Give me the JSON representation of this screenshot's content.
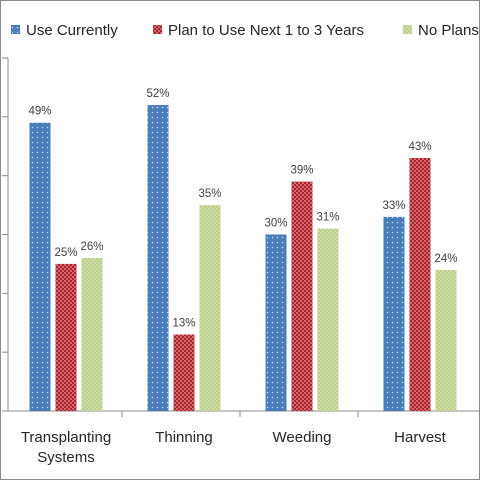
{
  "chart_data": {
    "type": "bar",
    "categories": [
      "Transplanting Systems",
      "Thinning",
      "Weeding",
      "Harvest"
    ],
    "category_lines": [
      [
        "Transplanting",
        "Systems"
      ],
      [
        "Thinning"
      ],
      [
        "Weeding"
      ],
      [
        "Harvest"
      ]
    ],
    "series": [
      {
        "name": "Use Currently",
        "values": [
          49,
          52,
          30,
          33
        ],
        "color": "#4a7ebb",
        "pattern": "dots"
      },
      {
        "name": "Plan to Use Next 1 to 3 Years",
        "values": [
          25,
          13,
          39,
          43
        ],
        "color": "#a8242b",
        "pattern": "check"
      },
      {
        "name": "No Plans",
        "values": [
          26,
          35,
          31,
          24
        ],
        "color": "#bcd08c",
        "pattern": "dots"
      }
    ],
    "value_suffix": "%",
    "ylim": [
      0,
      60
    ],
    "y_gridlines": false,
    "legend_position": "top",
    "title": "",
    "xlabel": "",
    "ylabel": ""
  }
}
